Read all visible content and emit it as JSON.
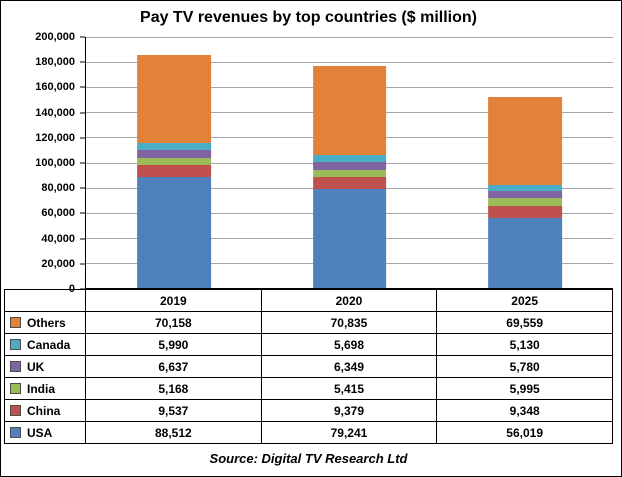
{
  "title": "Pay TV revenues by top countries ($ million)",
  "source": "Source: Digital TV Research Ltd",
  "chart_data": {
    "type": "bar",
    "stacked": true,
    "title": "Pay TV revenues by top countries ($ million)",
    "xlabel": "",
    "ylabel": "",
    "categories": [
      "2019",
      "2020",
      "2025"
    ],
    "series": [
      {
        "name": "USA",
        "color": "#4F81BD",
        "values": [
          88512,
          79241,
          56019
        ]
      },
      {
        "name": "China",
        "color": "#C0504D",
        "values": [
          9537,
          9379,
          9348
        ]
      },
      {
        "name": "India",
        "color": "#9BBB59",
        "values": [
          5168,
          5415,
          5995
        ]
      },
      {
        "name": "UK",
        "color": "#8064A2",
        "values": [
          6637,
          6349,
          5780
        ]
      },
      {
        "name": "Canada",
        "color": "#4BACC6",
        "values": [
          5990,
          5698,
          5130
        ]
      },
      {
        "name": "Others",
        "color": "#E2813A",
        "values": [
          70158,
          70835,
          69559
        ]
      }
    ],
    "table_row_order_top_to_bottom": [
      "Others",
      "Canada",
      "UK",
      "India",
      "China",
      "USA"
    ],
    "ylim": [
      0,
      200000
    ],
    "ytick_step": 20000,
    "ytick_labels": [
      "0",
      "20,000",
      "40,000",
      "60,000",
      "80,000",
      "100,000",
      "120,000",
      "140,000",
      "160,000",
      "180,000",
      "200,000"
    ],
    "grid": true,
    "gridline_color": "#A6A6A6",
    "legend_position": "table-left",
    "source": "Source: Digital TV Research Ltd"
  }
}
